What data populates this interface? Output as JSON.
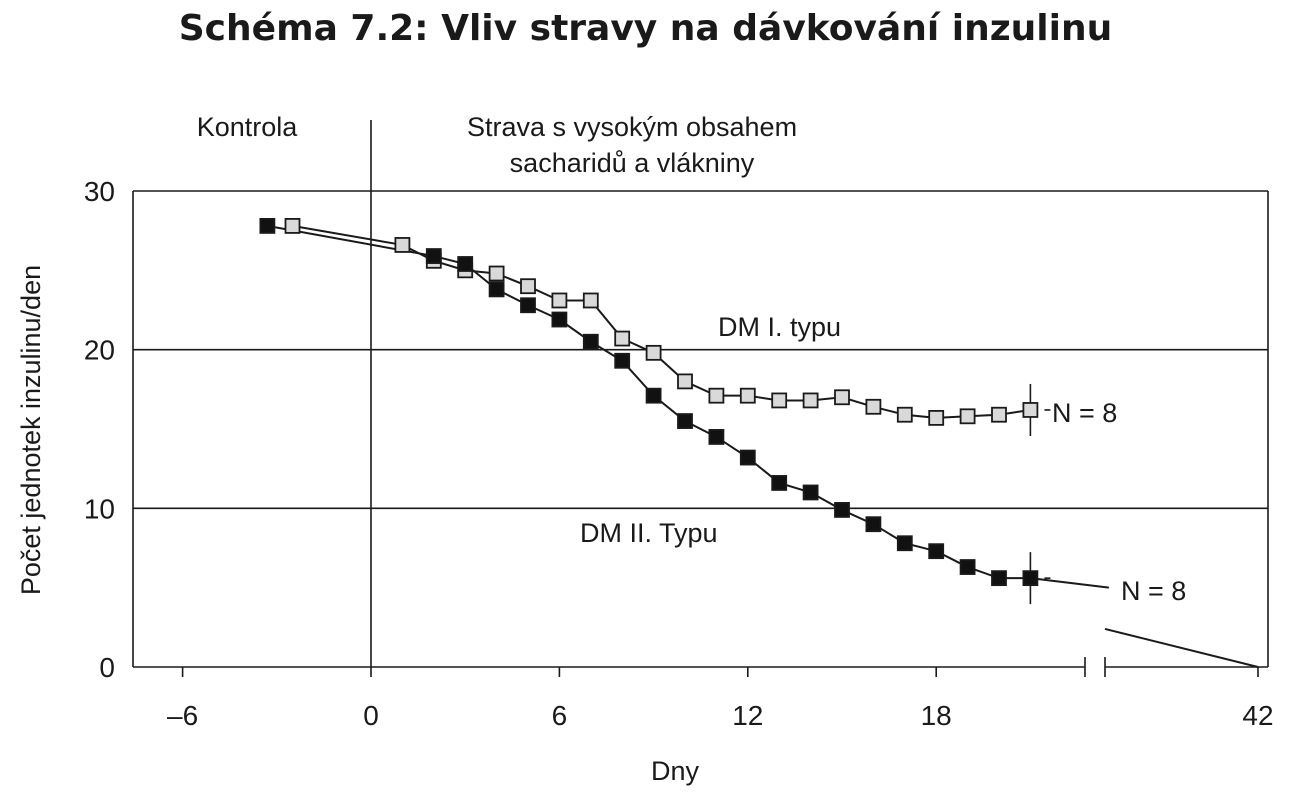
{
  "chart_data": {
    "type": "line",
    "title": "Schéma 7.2: Vliv stravy na dávkování inzulinu",
    "xlabel": "Dny",
    "ylabel": "Počet jednotek inzulinu/den",
    "ylim": [
      0,
      30
    ],
    "x_ticks": [
      "-6",
      "0",
      "6",
      "12",
      "18",
      "42"
    ],
    "y_ticks": [
      "0",
      "10",
      "20",
      "30"
    ],
    "x_axis_break": "between 21 and 42",
    "grid": "horizontal lines at 10 and 20",
    "phase_labels": {
      "control": "Kontrola",
      "diet": "Strava s vysokým obsahem sacharidů a vlákniny"
    },
    "series": [
      {
        "name": "DM I. typu",
        "marker": "open square",
        "color": "#d9d9d9",
        "n_label": "N = 8",
        "x": [
          -2.5,
          1,
          2,
          3,
          4,
          5,
          6,
          7,
          8,
          9,
          10,
          11,
          12,
          13,
          14,
          15,
          16,
          17,
          18,
          19,
          20,
          21
        ],
        "y": [
          27.8,
          26.6,
          25.6,
          25.0,
          24.8,
          24.0,
          23.1,
          23.1,
          20.7,
          19.8,
          18.0,
          17.1,
          17.1,
          16.8,
          16.8,
          17.0,
          16.4,
          15.9,
          15.7,
          15.8,
          15.9,
          16.2
        ]
      },
      {
        "name": "DM II. Typu",
        "marker": "filled square",
        "color": "#111111",
        "n_label": "N = 8",
        "x": [
          -3.3,
          2,
          3,
          4,
          5,
          6,
          7,
          8,
          9,
          10,
          11,
          12,
          13,
          14,
          15,
          16,
          17,
          18,
          19,
          20,
          21
        ],
        "y": [
          27.8,
          25.9,
          25.4,
          23.8,
          22.8,
          21.9,
          20.5,
          19.3,
          17.1,
          15.5,
          14.5,
          13.2,
          11.6,
          11.0,
          9.9,
          9.0,
          7.8,
          7.3,
          6.3,
          5.6,
          5.6
        ],
        "extrapolation": {
          "x": [
            21,
            23.5,
            42
          ],
          "y": [
            5.6,
            5.0,
            0
          ]
        }
      }
    ]
  }
}
